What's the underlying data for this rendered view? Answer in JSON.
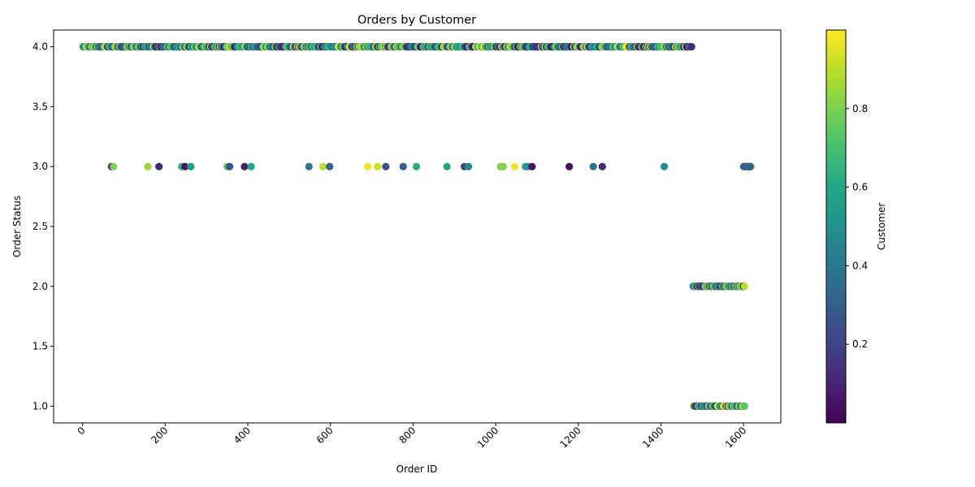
{
  "chart_data": {
    "type": "scatter",
    "title": "Orders by Customer",
    "xlabel": "Order ID",
    "ylabel": "Order Status",
    "xlim": [
      -70,
      1690
    ],
    "ylim": [
      0.86,
      4.14
    ],
    "x_ticks": [
      0,
      200,
      400,
      600,
      800,
      1000,
      1200,
      1400,
      1600
    ],
    "x_tick_labels": [
      "0",
      "200",
      "400",
      "600",
      "800",
      "1000",
      "1200",
      "1400",
      "1600"
    ],
    "x_tick_rotation": 45,
    "y_ticks": [
      1.0,
      1.5,
      2.0,
      2.5,
      3.0,
      3.5,
      4.0
    ],
    "y_tick_labels": [
      "1.0",
      "1.5",
      "2.0",
      "2.5",
      "3.0",
      "3.5",
      "4.0"
    ],
    "grid": false,
    "colormap": "viridis",
    "colorbar": {
      "label": "Customer",
      "range": [
        0.0,
        1.0
      ],
      "ticks": [
        0.2,
        0.4,
        0.6,
        0.8
      ],
      "tick_labels": [
        "0.2",
        "0.4",
        "0.6",
        "0.8"
      ]
    },
    "status_bands": [
      {
        "status": 4,
        "x_range": [
          1,
          1475
        ],
        "note_values": "dense, one point per order id"
      },
      {
        "status": 2,
        "x_range": [
          1478,
          1603
        ]
      },
      {
        "status": 1,
        "x_range": [
          1478,
          1603
        ]
      },
      {
        "status": 3,
        "x_range": [
          1600,
          1618
        ]
      }
    ],
    "points_status_3": [
      {
        "x": 70,
        "y": 3,
        "c": 0.15
      },
      {
        "x": 75,
        "y": 3,
        "c": 0.8
      },
      {
        "x": 158,
        "y": 3,
        "c": 0.85
      },
      {
        "x": 185,
        "y": 3,
        "c": 0.1
      },
      {
        "x": 240,
        "y": 3,
        "c": 0.65
      },
      {
        "x": 248,
        "y": 3,
        "c": 0.05
      },
      {
        "x": 262,
        "y": 3,
        "c": 0.55
      },
      {
        "x": 350,
        "y": 3,
        "c": 0.75
      },
      {
        "x": 356,
        "y": 3,
        "c": 0.25
      },
      {
        "x": 392,
        "y": 3,
        "c": 0.08
      },
      {
        "x": 408,
        "y": 3,
        "c": 0.6
      },
      {
        "x": 548,
        "y": 3,
        "c": 0.4
      },
      {
        "x": 582,
        "y": 3,
        "c": 0.9
      },
      {
        "x": 598,
        "y": 3,
        "c": 0.3
      },
      {
        "x": 690,
        "y": 3,
        "c": 0.98
      },
      {
        "x": 714,
        "y": 3,
        "c": 0.92
      },
      {
        "x": 734,
        "y": 3,
        "c": 0.25
      },
      {
        "x": 776,
        "y": 3,
        "c": 0.3
      },
      {
        "x": 808,
        "y": 3,
        "c": 0.62
      },
      {
        "x": 882,
        "y": 3,
        "c": 0.6
      },
      {
        "x": 924,
        "y": 3,
        "c": 0.2
      },
      {
        "x": 934,
        "y": 3,
        "c": 0.45
      },
      {
        "x": 1012,
        "y": 3,
        "c": 0.8
      },
      {
        "x": 1018,
        "y": 3,
        "c": 0.82
      },
      {
        "x": 1046,
        "y": 3,
        "c": 0.97
      },
      {
        "x": 1072,
        "y": 3,
        "c": 0.58
      },
      {
        "x": 1078,
        "y": 3,
        "c": 0.52
      },
      {
        "x": 1088,
        "y": 3,
        "c": 0.05
      },
      {
        "x": 1178,
        "y": 3,
        "c": 0.02
      },
      {
        "x": 1236,
        "y": 3,
        "c": 0.38
      },
      {
        "x": 1258,
        "y": 3,
        "c": 0.12
      },
      {
        "x": 1408,
        "y": 3,
        "c": 0.48
      },
      {
        "x": 1604,
        "y": 3,
        "c": 0.3
      },
      {
        "x": 1610,
        "y": 3,
        "c": 0.35
      },
      {
        "x": 1616,
        "y": 3,
        "c": 0.32
      }
    ]
  }
}
